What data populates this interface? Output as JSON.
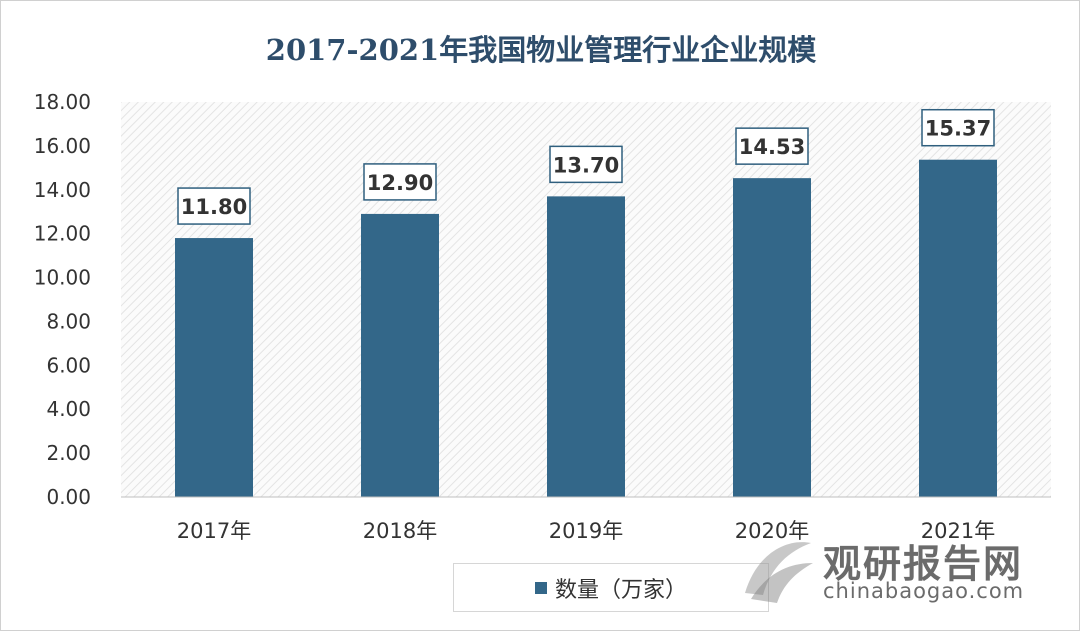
{
  "chart_data": {
    "type": "bar",
    "title": "2017-2021年我国物业管理行业企业规模",
    "categories": [
      "2017年",
      "2018年",
      "2019年",
      "2020年",
      "2021年"
    ],
    "series": [
      {
        "name": "数量（万家）",
        "values": [
          11.8,
          12.9,
          13.7,
          14.53,
          15.37
        ]
      }
    ],
    "data_labels": [
      "11.80",
      "12.90",
      "13.70",
      "14.53",
      "15.37"
    ],
    "yticks": [
      "0.00",
      "2.00",
      "4.00",
      "6.00",
      "8.00",
      "10.00",
      "12.00",
      "14.00",
      "16.00",
      "18.00"
    ],
    "ylim": [
      0,
      18
    ],
    "xlabel": "",
    "ylabel": "",
    "legend_position": "bottom",
    "grid": false,
    "colors": {
      "bar": "#336789",
      "plot_hatch": "#e4e4e4",
      "title": "#2e4d6b"
    }
  },
  "watermark": {
    "name_cn": "观研报告网",
    "domain": "chinabaogao.com"
  }
}
